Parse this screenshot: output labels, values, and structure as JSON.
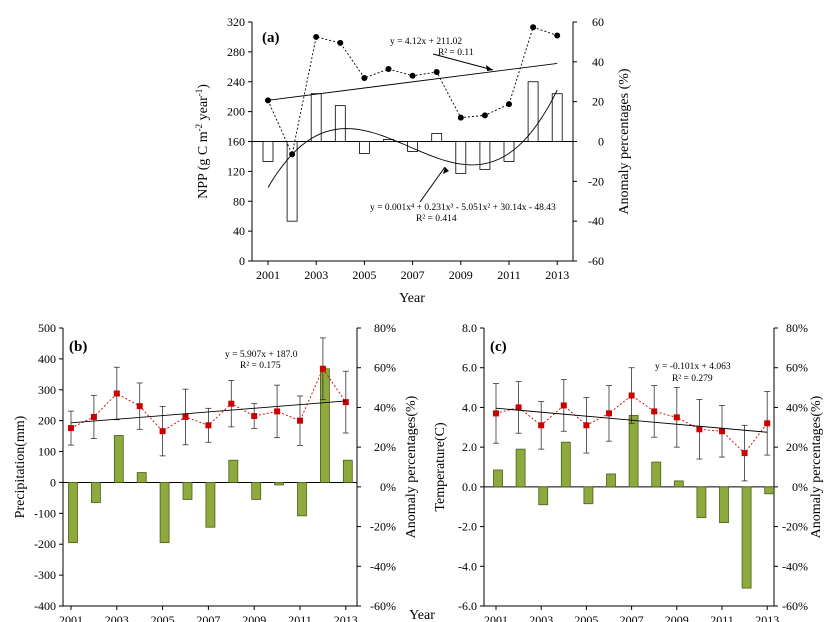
{
  "chart_data": [
    {
      "id": "a",
      "type": "bar+line",
      "panel_label": "(a)",
      "xlabel": "Year",
      "ylabel": "NPP (g C m-2 year-1)",
      "ylabel_parts": [
        "NPP (g C m",
        "-2",
        " year",
        "-1",
        ")"
      ],
      "y2label": "Anomaly percentages (%)",
      "ylim": [
        0,
        320
      ],
      "yticks": [
        "0",
        "40",
        "80",
        "120",
        "160",
        "200",
        "240",
        "280",
        "320"
      ],
      "y2lim": [
        -60,
        60
      ],
      "y2ticks": [
        "-60",
        "-40",
        "-20",
        "0",
        "20",
        "40",
        "60"
      ],
      "xticks": [
        "2001",
        "2003",
        "2005",
        "2007",
        "2009",
        "2011",
        "2013"
      ],
      "years": [
        2001,
        2002,
        2003,
        2004,
        2005,
        2006,
        2007,
        2008,
        2009,
        2010,
        2011,
        2012,
        2013
      ],
      "series": [
        {
          "role": "line",
          "values": [
            215,
            143,
            300,
            292,
            245,
            257,
            248,
            253,
            192,
            195,
            210,
            313,
            302
          ]
        },
        {
          "role": "bars",
          "axis": "right",
          "values": [
            -10,
            -40,
            24,
            18,
            -6,
            1,
            -5,
            4,
            -16,
            -14,
            -10,
            30,
            24
          ]
        }
      ],
      "trend_linear": {
        "slope": 4.12,
        "intercept": 211.02,
        "label1": "y = 4.12x + 211.02",
        "label2": "R² = 0.11"
      },
      "trend_poly": {
        "coef": [
          0.001,
          0.231,
          -5.051,
          30.14,
          -48.43
        ],
        "label1": "y = 0.001x⁴ + 0.231x³ - 5.051x² + 30.14x - 48.43",
        "label2": "R² = 0.414"
      },
      "grid": false,
      "colors": {
        "line": "#000000",
        "bar_fill": "#ffffff",
        "bar_edge": "#000000"
      }
    },
    {
      "id": "b",
      "type": "bar+line",
      "panel_label": "(b)",
      "xlabel": "Year",
      "ylabel": "Precipitation(mm)",
      "y2label": "Anomaly percentages(%)",
      "ylim": [
        -400,
        500
      ],
      "yticks": [
        "-400",
        "-300",
        "-200",
        "-100",
        "0",
        "100",
        "200",
        "300",
        "400",
        "500"
      ],
      "y2lim": [
        -60,
        80
      ],
      "y2ticks": [
        "-60%",
        "-40%",
        "-20%",
        "0%",
        "20%",
        "40%",
        "60%",
        "80%"
      ],
      "xticks": [
        "2001",
        "2003",
        "2005",
        "2007",
        "2009",
        "2011",
        "2013"
      ],
      "years": [
        2001,
        2002,
        2003,
        2004,
        2005,
        2006,
        2007,
        2008,
        2009,
        2010,
        2011,
        2012,
        2013
      ],
      "series": [
        {
          "role": "line",
          "values": [
            176,
            212,
            288,
            247,
            166,
            212,
            185,
            255,
            215,
            230,
            200,
            368,
            260
          ],
          "errors": [
            55,
            70,
            85,
            75,
            80,
            90,
            55,
            75,
            40,
            85,
            80,
            100,
            100
          ]
        },
        {
          "role": "bars",
          "values": [
            -195,
            -65,
            152,
            32,
            -195,
            -55,
            -145,
            72,
            -55,
            -8,
            -108,
            368,
            72
          ]
        }
      ],
      "trend_linear": {
        "slope": 5.907,
        "intercept": 187.0,
        "label1": "y = 5.907x + 187.0",
        "label2": "R² = 0.175"
      },
      "grid": false,
      "colors": {
        "line": "#cc0000",
        "marker": "#cc0000",
        "bar_fill": "#8faa3c",
        "bar_edge": "#4b5e1e",
        "trend": "#000000"
      }
    },
    {
      "id": "c",
      "type": "bar+line",
      "panel_label": "(c)",
      "xlabel": "",
      "ylabel": "Temperature(C)",
      "y2label": "Anomaly percentages(%)",
      "ylim": [
        -6.0,
        8.0
      ],
      "yticks": [
        "-6.0",
        "-4.0",
        "-2.0",
        "0.0",
        "2.0",
        "4.0",
        "6.0",
        "8.0"
      ],
      "y2lim": [
        -60,
        80
      ],
      "y2ticks": [
        "-60%",
        "-40%",
        "-20%",
        "0%",
        "20%",
        "40%",
        "60%",
        "80%"
      ],
      "xticks": [
        "2001",
        "2003",
        "2005",
        "2007",
        "2009",
        "2011",
        "2013"
      ],
      "years": [
        2001,
        2002,
        2003,
        2004,
        2005,
        2006,
        2007,
        2008,
        2009,
        2010,
        2011,
        2012,
        2013
      ],
      "series": [
        {
          "role": "line",
          "values": [
            3.7,
            4.0,
            3.1,
            4.1,
            3.1,
            3.7,
            4.6,
            3.8,
            3.5,
            2.9,
            2.8,
            1.7,
            3.2
          ],
          "errors": [
            1.5,
            1.3,
            1.2,
            1.3,
            1.4,
            1.4,
            1.4,
            1.3,
            1.5,
            1.5,
            1.3,
            1.4,
            1.6
          ]
        },
        {
          "role": "bars",
          "values": [
            0.85,
            1.9,
            -0.9,
            2.25,
            -0.85,
            0.65,
            3.6,
            1.25,
            0.3,
            -1.55,
            -1.8,
            -5.1,
            -0.35
          ]
        }
      ],
      "trend_linear": {
        "slope": -0.101,
        "intercept": 4.063,
        "label1": "y = -0.101x + 4.063",
        "label2": "R² = 0.279"
      },
      "grid": false,
      "colors": {
        "line": "#cc0000",
        "marker": "#cc0000",
        "bar_fill": "#8faa3c",
        "bar_edge": "#4b5e1e",
        "trend": "#000000"
      }
    }
  ],
  "shared_xlabel": "Year"
}
